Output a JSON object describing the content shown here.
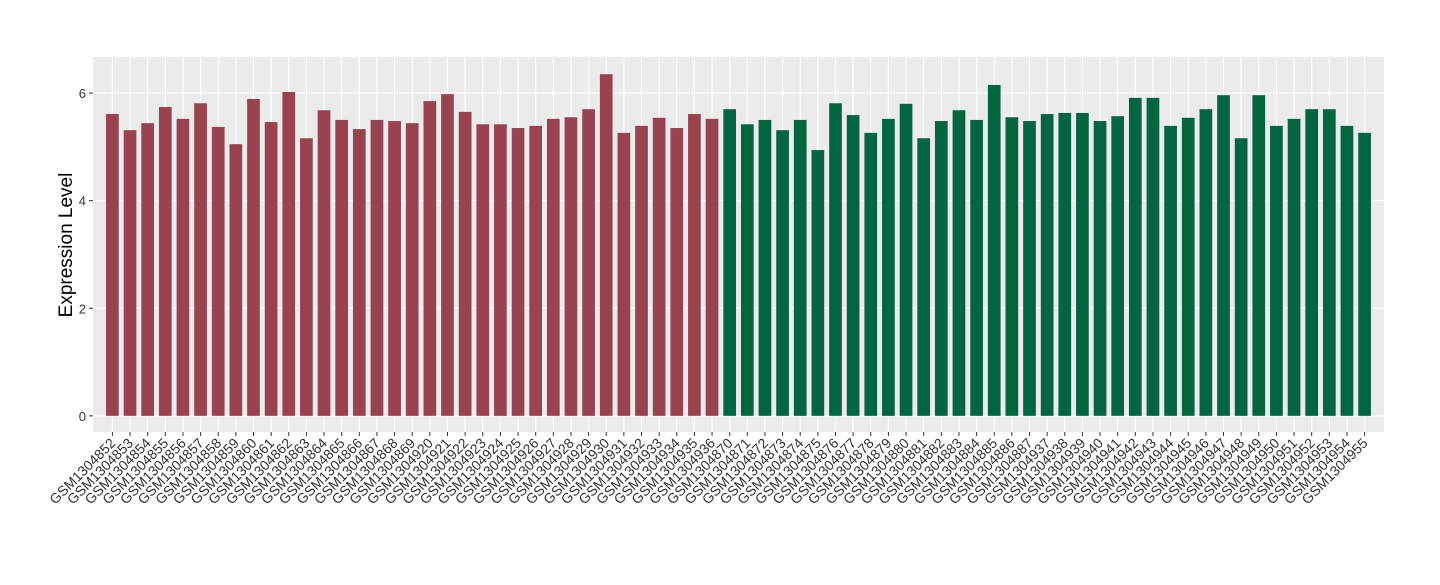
{
  "chart_data": {
    "type": "bar",
    "y_label": "Expression Level",
    "categories": [
      "GSM1304852",
      "GSM1304853",
      "GSM1304854",
      "GSM1304855",
      "GSM1304856",
      "GSM1304857",
      "GSM1304858",
      "GSM1304859",
      "GSM1304860",
      "GSM1304861",
      "GSM1304862",
      "GSM1304863",
      "GSM1304864",
      "GSM1304865",
      "GSM1304866",
      "GSM1304867",
      "GSM1304868",
      "GSM1304869",
      "GSM1304920",
      "GSM1304921",
      "GSM1304922",
      "GSM1304923",
      "GSM1304924",
      "GSM1304925",
      "GSM1304926",
      "GSM1304927",
      "GSM1304928",
      "GSM1304929",
      "GSM1304930",
      "GSM1304931",
      "GSM1304932",
      "GSM1304933",
      "GSM1304934",
      "GSM1304935",
      "GSM1304936",
      "GSM1304870",
      "GSM1304871",
      "GSM1304872",
      "GSM1304873",
      "GSM1304874",
      "GSM1304875",
      "GSM1304876",
      "GSM1304877",
      "GSM1304878",
      "GSM1304879",
      "GSM1304880",
      "GSM1304881",
      "GSM1304882",
      "GSM1304883",
      "GSM1304884",
      "GSM1304885",
      "GSM1304886",
      "GSM1304887",
      "GSM1304937",
      "GSM1304938",
      "GSM1304939",
      "GSM1304940",
      "GSM1304941",
      "GSM1304942",
      "GSM1304943",
      "GSM1304944",
      "GSM1304945",
      "GSM1304946",
      "GSM1304947",
      "GSM1304948",
      "GSM1304949",
      "GSM1304950",
      "GSM1304951",
      "GSM1304952",
      "GSM1304953",
      "GSM1304954",
      "GSM1304955"
    ],
    "series": [
      {
        "color": "#9a4350",
        "values": [
          5.61,
          5.31,
          5.44,
          5.74,
          5.52,
          5.81,
          5.37,
          5.05,
          5.89,
          5.46,
          6.02,
          5.16,
          5.68,
          5.5,
          5.33,
          5.5,
          5.48,
          5.44,
          5.85,
          5.98,
          5.65,
          5.42,
          5.42,
          5.35,
          5.39,
          5.52,
          5.55,
          5.7,
          6.35,
          5.26,
          5.39,
          5.54,
          5.35,
          5.61,
          5.52,
          null,
          null,
          null,
          null,
          null,
          null,
          null,
          null,
          null,
          null,
          null,
          null,
          null,
          null,
          null,
          null,
          null,
          null,
          null,
          null,
          null,
          null,
          null,
          null,
          null,
          null,
          null,
          null,
          null,
          null,
          null,
          null,
          null,
          null,
          null,
          null,
          null
        ]
      },
      {
        "color": "#036641",
        "values": [
          null,
          null,
          null,
          null,
          null,
          null,
          null,
          null,
          null,
          null,
          null,
          null,
          null,
          null,
          null,
          null,
          null,
          null,
          null,
          null,
          null,
          null,
          null,
          null,
          null,
          null,
          null,
          null,
          null,
          null,
          null,
          null,
          null,
          null,
          null,
          5.7,
          5.42,
          5.5,
          5.31,
          5.5,
          4.94,
          5.81,
          5.59,
          5.26,
          5.52,
          5.8,
          5.16,
          5.48,
          5.68,
          5.5,
          6.15,
          5.55,
          5.48,
          5.61,
          5.63,
          5.63,
          5.48,
          5.57,
          5.91,
          5.91,
          5.39,
          5.54,
          5.7,
          5.96,
          5.16,
          5.96,
          5.39,
          5.52,
          5.7,
          5.7,
          5.39,
          5.26
        ]
      }
    ],
    "ylim": [
      -0.3,
      6.67
    ],
    "yticks": [
      0,
      2,
      4,
      6
    ],
    "grid": true
  }
}
